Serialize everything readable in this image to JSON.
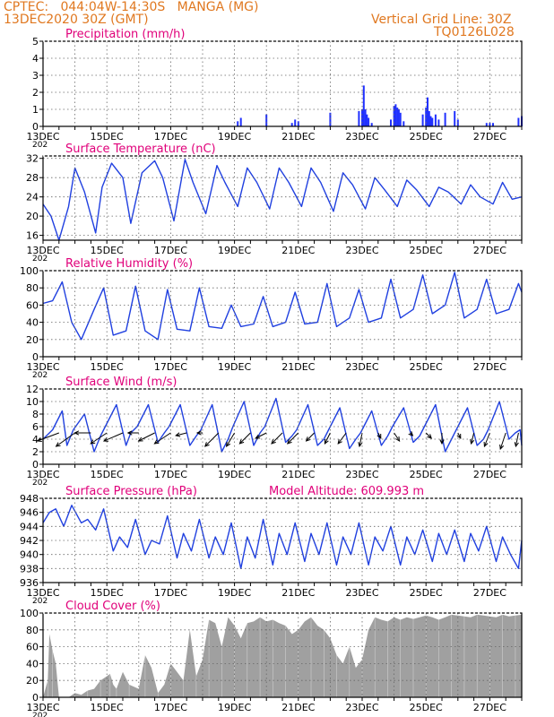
{
  "header": {
    "line1_left": "CPTEC:   044:04W-14:30S   MANGA (MG)",
    "line2_left": "13DEC2020 30Z (GMT)",
    "right1": "Vertical Grid Line: 30Z",
    "right2": "TQ0126L028"
  },
  "colors": {
    "header": "#e07820",
    "title": "#e0007a",
    "line": "#2040e0",
    "bar": "#2030ff",
    "cloud": "#a0a0a0",
    "grid": "#666666"
  },
  "x_ticks": [
    "13DEC",
    "15DEC",
    "17DEC",
    "19DEC",
    "21DEC",
    "23DEC",
    "25DEC",
    "27DEC"
  ],
  "x_tick_days": [
    13,
    15,
    17,
    19,
    21,
    23,
    25,
    27
  ],
  "x_range_days": [
    13,
    28
  ],
  "partial_label": "202",
  "chart_data": [
    {
      "type": "bar",
      "title": "Precipitation (mm/h)",
      "ylim": [
        0,
        5
      ],
      "yticks": [
        "0",
        "1",
        "2",
        "3",
        "4",
        "5"
      ],
      "ytick_values": [
        0,
        1,
        2,
        3,
        4,
        5
      ],
      "x_days": [
        19.1,
        19.2,
        20.0,
        20.8,
        20.9,
        21.0,
        22.0,
        22.9,
        23.0,
        23.05,
        23.1,
        23.15,
        23.2,
        23.3,
        23.9,
        24.0,
        24.05,
        24.1,
        24.15,
        24.2,
        24.3,
        24.9,
        25.0,
        25.05,
        25.1,
        25.15,
        25.2,
        25.3,
        25.4,
        25.6,
        25.9,
        26.0,
        26.9,
        27.0,
        27.1,
        27.9,
        28.0
      ],
      "values": [
        0.3,
        0.5,
        0.7,
        0.2,
        0.4,
        0.3,
        0.8,
        0.9,
        1.0,
        2.4,
        1.0,
        0.7,
        0.5,
        0.2,
        0.4,
        1.2,
        1.3,
        1.1,
        1.0,
        0.8,
        0.3,
        0.7,
        1.1,
        1.7,
        0.9,
        0.6,
        0.5,
        0.7,
        0.4,
        0.8,
        0.9,
        0.4,
        0.2,
        0.2,
        0.2,
        0.5,
        0.6
      ]
    },
    {
      "type": "line",
      "title": "Surface Temperature (nC)",
      "ylim": [
        15,
        32.5
      ],
      "yticks": [
        "16",
        "20",
        "24",
        "28",
        "32"
      ],
      "ytick_values": [
        16,
        20,
        24,
        28,
        32
      ],
      "x_days": [
        13.0,
        13.25,
        13.5,
        13.8,
        14.0,
        14.3,
        14.65,
        14.85,
        15.15,
        15.5,
        15.75,
        16.1,
        16.5,
        16.75,
        17.1,
        17.45,
        17.7,
        18.1,
        18.45,
        18.7,
        19.1,
        19.4,
        19.7,
        20.1,
        20.4,
        20.7,
        21.1,
        21.4,
        21.7,
        22.1,
        22.4,
        22.7,
        23.1,
        23.4,
        23.7,
        24.1,
        24.4,
        24.7,
        25.1,
        25.4,
        25.7,
        26.1,
        26.4,
        26.7,
        27.1,
        27.4,
        27.7,
        28.0
      ],
      "values": [
        22.5,
        20.0,
        15.0,
        22.0,
        30.0,
        25.0,
        16.5,
        26.0,
        31.0,
        28.0,
        18.5,
        29.0,
        31.5,
        28.0,
        19.0,
        31.8,
        27.0,
        20.5,
        30.5,
        27.0,
        22.0,
        30.0,
        27.0,
        21.5,
        30.0,
        27.0,
        22.0,
        30.0,
        27.0,
        21.0,
        29.0,
        26.5,
        21.5,
        28.0,
        25.5,
        22.0,
        27.5,
        25.5,
        22.0,
        26.0,
        25.0,
        22.5,
        26.5,
        24.0,
        22.5,
        27.0,
        23.5,
        24.0
      ]
    },
    {
      "type": "line",
      "title": "Relative Humidity (%)",
      "ylim": [
        0,
        100
      ],
      "yticks": [
        "0",
        "20",
        "40",
        "60",
        "80",
        "100"
      ],
      "ytick_values": [
        0,
        20,
        40,
        60,
        80,
        100
      ],
      "x_days": [
        13.0,
        13.3,
        13.6,
        13.9,
        14.2,
        14.6,
        14.9,
        15.2,
        15.6,
        15.9,
        16.2,
        16.6,
        16.9,
        17.2,
        17.6,
        17.9,
        18.2,
        18.6,
        18.9,
        19.2,
        19.6,
        19.9,
        20.2,
        20.6,
        20.9,
        21.2,
        21.6,
        21.9,
        22.2,
        22.6,
        22.9,
        23.2,
        23.6,
        23.9,
        24.2,
        24.6,
        24.9,
        25.2,
        25.6,
        25.9,
        26.2,
        26.6,
        26.9,
        27.2,
        27.6,
        27.9,
        28.0
      ],
      "values": [
        62,
        65,
        87,
        40,
        20,
        55,
        80,
        25,
        30,
        82,
        30,
        20,
        78,
        32,
        30,
        80,
        35,
        33,
        60,
        35,
        38,
        70,
        35,
        40,
        75,
        38,
        40,
        85,
        35,
        45,
        78,
        40,
        45,
        90,
        45,
        55,
        95,
        50,
        60,
        98,
        45,
        55,
        90,
        50,
        55,
        85,
        75
      ]
    },
    {
      "type": "line",
      "title": "Surface Wind (m/s)",
      "ylim": [
        0,
        12
      ],
      "yticks": [
        "0",
        "2",
        "4",
        "6",
        "8",
        "10",
        "12"
      ],
      "ytick_values": [
        0,
        2,
        4,
        6,
        8,
        10,
        12
      ],
      "x_days": [
        13.0,
        13.3,
        13.6,
        13.75,
        13.95,
        14.3,
        14.6,
        14.8,
        14.95,
        15.3,
        15.6,
        15.75,
        15.95,
        16.3,
        16.6,
        16.8,
        16.95,
        17.3,
        17.6,
        17.8,
        17.95,
        18.3,
        18.6,
        18.8,
        18.95,
        19.3,
        19.6,
        19.8,
        19.95,
        20.3,
        20.6,
        20.8,
        20.95,
        21.3,
        21.6,
        21.8,
        21.95,
        22.3,
        22.6,
        22.8,
        22.95,
        23.3,
        23.6,
        23.8,
        23.95,
        24.3,
        24.6,
        24.8,
        24.95,
        25.3,
        25.6,
        25.8,
        25.95,
        26.3,
        26.6,
        26.8,
        26.95,
        27.3,
        27.6,
        27.8,
        27.95,
        28.0
      ],
      "values": [
        4.0,
        5.5,
        8.5,
        3.0,
        5.5,
        8.0,
        2.0,
        4.5,
        6.0,
        9.5,
        3.0,
        5.0,
        6.0,
        9.5,
        3.5,
        5.0,
        6.0,
        9.5,
        3.0,
        4.5,
        5.5,
        9.5,
        2.0,
        4.0,
        6.0,
        10.0,
        3.0,
        5.0,
        6.0,
        10.5,
        3.5,
        4.5,
        5.5,
        9.5,
        3.0,
        4.0,
        5.5,
        9.0,
        2.5,
        4.0,
        5.0,
        8.5,
        3.0,
        4.5,
        6.0,
        9.0,
        3.5,
        4.5,
        6.0,
        9.5,
        2.0,
        4.0,
        5.5,
        9.0,
        3.0,
        4.0,
        5.5,
        10.0,
        4.0,
        5.0,
        5.5,
        3.0
      ],
      "arrows": [
        {
          "day": 13.5,
          "u": -4.0,
          "v": -1.5
        },
        {
          "day": 14.0,
          "u": -3.5,
          "v": -2.5
        },
        {
          "day": 14.5,
          "u": -3.0,
          "v": 0.0
        },
        {
          "day": 15.0,
          "u": -3.0,
          "v": -2.0
        },
        {
          "day": 15.5,
          "u": -3.5,
          "v": -1.5
        },
        {
          "day": 16.0,
          "u": -2.0,
          "v": 0.0
        },
        {
          "day": 16.5,
          "u": -3.0,
          "v": -1.5
        },
        {
          "day": 17.0,
          "u": -3.0,
          "v": -2.0
        },
        {
          "day": 17.5,
          "u": -2.0,
          "v": -0.5
        },
        {
          "day": 18.0,
          "u": -1.0,
          "v": 0.0
        },
        {
          "day": 18.5,
          "u": -2.5,
          "v": -2.5
        },
        {
          "day": 19.0,
          "u": -1.5,
          "v": -2.5
        },
        {
          "day": 19.5,
          "u": -2.0,
          "v": -2.0
        },
        {
          "day": 20.0,
          "u": -2.0,
          "v": -1.0
        },
        {
          "day": 20.5,
          "u": -2.0,
          "v": -2.0
        },
        {
          "day": 21.0,
          "u": -2.0,
          "v": -2.0
        },
        {
          "day": 21.5,
          "u": -1.5,
          "v": -1.5
        },
        {
          "day": 22.0,
          "u": -1.0,
          "v": -2.0
        },
        {
          "day": 22.5,
          "u": -1.5,
          "v": -2.0
        },
        {
          "day": 23.0,
          "u": -0.5,
          "v": -2.5
        },
        {
          "day": 23.5,
          "u": 0.5,
          "v": -1.0
        },
        {
          "day": 24.0,
          "u": 1.0,
          "v": -1.5
        },
        {
          "day": 24.5,
          "u": 0.5,
          "v": -0.5
        },
        {
          "day": 25.0,
          "u": 1.0,
          "v": -1.0
        },
        {
          "day": 25.5,
          "u": 0.0,
          "v": -2.0
        },
        {
          "day": 26.0,
          "u": 0.5,
          "v": -1.0
        },
        {
          "day": 26.5,
          "u": -0.5,
          "v": -2.0
        },
        {
          "day": 27.0,
          "u": -1.0,
          "v": -2.5
        },
        {
          "day": 27.5,
          "u": -1.0,
          "v": -3.0
        },
        {
          "day": 27.9,
          "u": -0.5,
          "v": -2.5
        }
      ]
    },
    {
      "type": "line",
      "title": "Surface Pressure (hPa)",
      "subtitle": "Model Altitude: 609.993 m",
      "ylim": [
        936,
        948
      ],
      "yticks": [
        "936",
        "938",
        "940",
        "942",
        "944",
        "946",
        "948"
      ],
      "ytick_values": [
        936,
        938,
        940,
        942,
        944,
        946,
        948
      ],
      "x_days": [
        13.0,
        13.2,
        13.4,
        13.65,
        13.9,
        14.2,
        14.4,
        14.65,
        14.9,
        15.2,
        15.4,
        15.65,
        15.9,
        16.2,
        16.4,
        16.65,
        16.9,
        17.2,
        17.4,
        17.65,
        17.9,
        18.2,
        18.4,
        18.65,
        18.9,
        19.2,
        19.4,
        19.65,
        19.9,
        20.2,
        20.4,
        20.65,
        20.9,
        21.2,
        21.4,
        21.65,
        21.9,
        22.2,
        22.4,
        22.65,
        22.9,
        23.2,
        23.4,
        23.65,
        23.9,
        24.2,
        24.4,
        24.65,
        24.9,
        25.2,
        25.4,
        25.65,
        25.9,
        26.2,
        26.4,
        26.65,
        26.9,
        27.2,
        27.4,
        27.65,
        27.9,
        28.0
      ],
      "values": [
        944.5,
        946.0,
        946.5,
        944.0,
        947.0,
        944.5,
        945.0,
        943.5,
        946.5,
        940.5,
        942.5,
        941.0,
        945.0,
        940.0,
        942.0,
        941.5,
        945.5,
        939.5,
        943.0,
        940.5,
        945.0,
        939.5,
        942.5,
        940.0,
        944.5,
        938.0,
        942.5,
        939.5,
        945.0,
        938.5,
        943.0,
        940.0,
        944.5,
        939.0,
        943.0,
        940.0,
        944.5,
        938.5,
        942.5,
        940.0,
        944.5,
        938.5,
        942.5,
        940.5,
        944.0,
        938.5,
        942.5,
        940.0,
        943.5,
        939.0,
        943.0,
        940.0,
        943.5,
        939.0,
        943.0,
        940.5,
        944.0,
        939.0,
        942.5,
        940.0,
        938.0,
        942.0
      ]
    },
    {
      "type": "area",
      "title": "Cloud Cover (%)",
      "ylim": [
        0,
        100
      ],
      "yticks": [
        "0",
        "20",
        "40",
        "60",
        "80",
        "100"
      ],
      "ytick_values": [
        0,
        20,
        40,
        60,
        80,
        100
      ],
      "x_days": [
        13.0,
        13.15,
        13.2,
        13.3,
        13.4,
        13.5,
        13.8,
        14.0,
        14.2,
        14.4,
        14.6,
        14.8,
        15.0,
        15.1,
        15.2,
        15.3,
        15.5,
        15.7,
        16.0,
        16.2,
        16.4,
        16.6,
        16.8,
        17.0,
        17.2,
        17.4,
        17.6,
        17.8,
        18.0,
        18.2,
        18.4,
        18.6,
        18.8,
        19.0,
        19.2,
        19.4,
        19.6,
        19.8,
        20.0,
        20.2,
        20.4,
        20.6,
        20.8,
        21.0,
        21.2,
        21.4,
        21.6,
        21.8,
        22.0,
        22.2,
        22.4,
        22.6,
        22.8,
        23.0,
        23.2,
        23.4,
        23.6,
        23.8,
        24.0,
        24.2,
        24.4,
        24.6,
        24.8,
        25.0,
        25.2,
        25.4,
        25.6,
        25.8,
        26.0,
        26.2,
        26.4,
        26.6,
        26.8,
        27.0,
        27.2,
        27.4,
        27.6,
        27.8,
        28.0
      ],
      "values": [
        0,
        20,
        75,
        55,
        40,
        0,
        0,
        5,
        3,
        8,
        10,
        20,
        25,
        28,
        15,
        10,
        30,
        15,
        10,
        50,
        35,
        5,
        15,
        40,
        30,
        20,
        80,
        25,
        45,
        92,
        88,
        60,
        95,
        85,
        70,
        88,
        90,
        95,
        90,
        92,
        88,
        85,
        75,
        80,
        90,
        95,
        85,
        80,
        70,
        50,
        40,
        60,
        35,
        45,
        80,
        95,
        92,
        90,
        95,
        92,
        95,
        93,
        95,
        97,
        95,
        92,
        95,
        98,
        97,
        96,
        95,
        98,
        97,
        96,
        95,
        98,
        96,
        97,
        98
      ]
    }
  ]
}
